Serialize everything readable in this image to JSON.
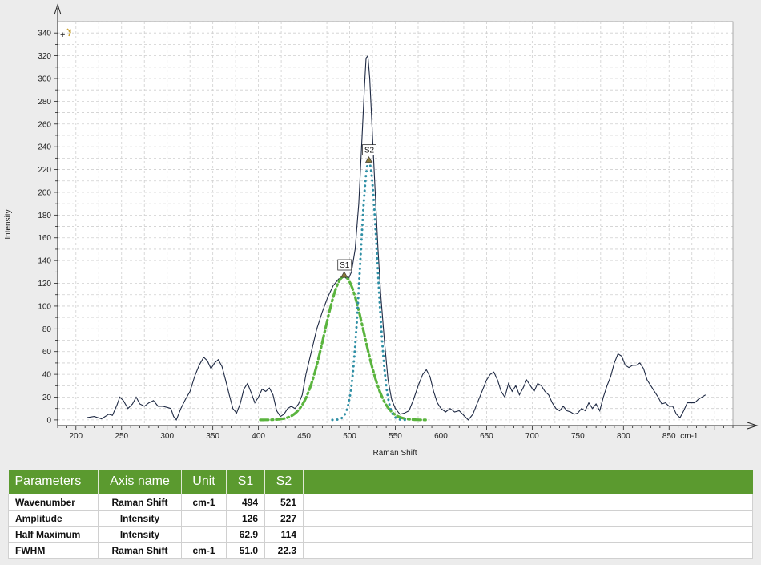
{
  "chart_data": {
    "type": "line",
    "xlabel": "Raman Shift",
    "ylabel": "Intensity",
    "x_unit_label": "cm-1",
    "xlim": [
      180,
      920
    ],
    "ylim": [
      -5,
      350
    ],
    "x_ticks": [
      200,
      250,
      300,
      350,
      400,
      450,
      500,
      550,
      600,
      650,
      700,
      750,
      800,
      850
    ],
    "y_ticks": [
      0,
      20,
      40,
      60,
      80,
      100,
      120,
      140,
      160,
      180,
      200,
      220,
      240,
      260,
      280,
      300,
      320,
      340
    ],
    "grid": true,
    "series": [
      {
        "name": "",
        "style": "line",
        "color": "#1f2a44",
        "points": [
          [
            212,
            2
          ],
          [
            220,
            3
          ],
          [
            228,
            1
          ],
          [
            236,
            5
          ],
          [
            240,
            4
          ],
          [
            245,
            13
          ],
          [
            248,
            20
          ],
          [
            252,
            17
          ],
          [
            257,
            10
          ],
          [
            262,
            14
          ],
          [
            266,
            20
          ],
          [
            270,
            14
          ],
          [
            275,
            12
          ],
          [
            280,
            15
          ],
          [
            285,
            17
          ],
          [
            290,
            12
          ],
          [
            295,
            12
          ],
          [
            300,
            11
          ],
          [
            304,
            10
          ],
          [
            307,
            3
          ],
          [
            310,
            0
          ],
          [
            315,
            10
          ],
          [
            320,
            18
          ],
          [
            325,
            25
          ],
          [
            330,
            38
          ],
          [
            335,
            48
          ],
          [
            340,
            55
          ],
          [
            344,
            52
          ],
          [
            348,
            45
          ],
          [
            352,
            50
          ],
          [
            356,
            53
          ],
          [
            360,
            47
          ],
          [
            364,
            35
          ],
          [
            368,
            22
          ],
          [
            372,
            10
          ],
          [
            376,
            6
          ],
          [
            380,
            14
          ],
          [
            384,
            27
          ],
          [
            388,
            32
          ],
          [
            392,
            24
          ],
          [
            396,
            15
          ],
          [
            400,
            20
          ],
          [
            404,
            27
          ],
          [
            408,
            25
          ],
          [
            412,
            28
          ],
          [
            416,
            22
          ],
          [
            420,
            8
          ],
          [
            424,
            3
          ],
          [
            428,
            5
          ],
          [
            432,
            10
          ],
          [
            436,
            12
          ],
          [
            440,
            10
          ],
          [
            444,
            14
          ],
          [
            448,
            22
          ],
          [
            452,
            40
          ],
          [
            458,
            60
          ],
          [
            464,
            80
          ],
          [
            470,
            95
          ],
          [
            476,
            108
          ],
          [
            482,
            118
          ],
          [
            488,
            124
          ],
          [
            494,
            126
          ],
          [
            498,
            123
          ],
          [
            502,
            130
          ],
          [
            506,
            150
          ],
          [
            510,
            190
          ],
          [
            513,
            240
          ],
          [
            516,
            290
          ],
          [
            518,
            318
          ],
          [
            520,
            320
          ],
          [
            522,
            300
          ],
          [
            525,
            250
          ],
          [
            528,
            200
          ],
          [
            531,
            150
          ],
          [
            534,
            110
          ],
          [
            538,
            70
          ],
          [
            542,
            35
          ],
          [
            546,
            18
          ],
          [
            550,
            10
          ],
          [
            555,
            5
          ],
          [
            560,
            6
          ],
          [
            565,
            8
          ],
          [
            570,
            18
          ],
          [
            575,
            30
          ],
          [
            580,
            40
          ],
          [
            584,
            44
          ],
          [
            588,
            38
          ],
          [
            592,
            25
          ],
          [
            596,
            15
          ],
          [
            600,
            10
          ],
          [
            605,
            7
          ],
          [
            610,
            10
          ],
          [
            615,
            7
          ],
          [
            620,
            8
          ],
          [
            625,
            4
          ],
          [
            630,
            0
          ],
          [
            635,
            5
          ],
          [
            640,
            15
          ],
          [
            645,
            25
          ],
          [
            650,
            35
          ],
          [
            654,
            40
          ],
          [
            658,
            42
          ],
          [
            662,
            35
          ],
          [
            666,
            25
          ],
          [
            670,
            20
          ],
          [
            674,
            32
          ],
          [
            678,
            25
          ],
          [
            682,
            30
          ],
          [
            686,
            22
          ],
          [
            690,
            28
          ],
          [
            694,
            35
          ],
          [
            698,
            30
          ],
          [
            702,
            25
          ],
          [
            706,
            32
          ],
          [
            710,
            30
          ],
          [
            714,
            25
          ],
          [
            718,
            22
          ],
          [
            722,
            15
          ],
          [
            726,
            10
          ],
          [
            730,
            8
          ],
          [
            734,
            12
          ],
          [
            738,
            8
          ],
          [
            742,
            7
          ],
          [
            746,
            5
          ],
          [
            750,
            6
          ],
          [
            754,
            10
          ],
          [
            758,
            8
          ],
          [
            762,
            15
          ],
          [
            766,
            10
          ],
          [
            770,
            14
          ],
          [
            774,
            8
          ],
          [
            778,
            20
          ],
          [
            782,
            30
          ],
          [
            786,
            38
          ],
          [
            790,
            50
          ],
          [
            794,
            58
          ],
          [
            798,
            56
          ],
          [
            802,
            48
          ],
          [
            806,
            46
          ],
          [
            810,
            48
          ],
          [
            814,
            48
          ],
          [
            818,
            50
          ],
          [
            822,
            45
          ],
          [
            826,
            35
          ],
          [
            830,
            30
          ],
          [
            834,
            25
          ],
          [
            838,
            20
          ],
          [
            842,
            14
          ],
          [
            846,
            15
          ],
          [
            850,
            12
          ],
          [
            854,
            12
          ],
          [
            858,
            5
          ],
          [
            862,
            2
          ],
          [
            866,
            8
          ],
          [
            870,
            15
          ],
          [
            874,
            15
          ],
          [
            878,
            15
          ],
          [
            882,
            18
          ],
          [
            886,
            20
          ],
          [
            890,
            22
          ]
        ]
      },
      {
        "name": "S1",
        "style": "dash-dot",
        "color": "#5ab43e",
        "center": 494,
        "amplitude": 126,
        "fwhm": 51.0,
        "range": [
          402,
          586
        ]
      },
      {
        "name": "S2",
        "style": "dotted",
        "color": "#2f8fa5",
        "center": 521,
        "amplitude": 227,
        "fwhm": 22.3,
        "range": [
          481,
          561
        ]
      }
    ],
    "annotations": [
      {
        "label": "S1",
        "x": 494,
        "y": 126
      },
      {
        "label": "S2",
        "x": 521,
        "y": 227
      }
    ]
  },
  "table": {
    "headers": [
      "Parameters",
      "Axis name",
      "Unit",
      "S1",
      "S2"
    ],
    "rows": [
      {
        "param": "Wavenumber",
        "axis": "Raman Shift",
        "unit": "cm-1",
        "s1": "494",
        "s2": "521"
      },
      {
        "param": "Amplitude",
        "axis": "Intensity",
        "unit": "",
        "s1": "126",
        "s2": "227"
      },
      {
        "param": "Half Maximum",
        "axis": "Intensity",
        "unit": "",
        "s1": "62.9",
        "s2": "114"
      },
      {
        "param": "FWHM",
        "axis": "Raman Shift",
        "unit": "cm-1",
        "s1": "51.0",
        "s2": "22.3"
      }
    ]
  }
}
